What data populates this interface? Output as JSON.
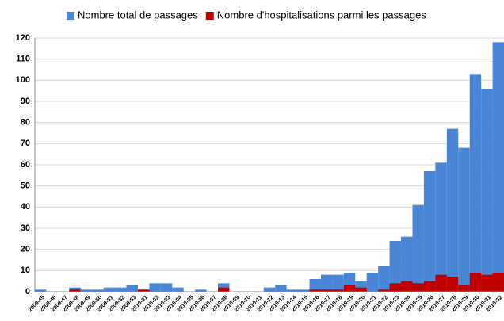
{
  "chart_data": {
    "type": "bar",
    "categories": [
      "2009-45",
      "2009-46",
      "2009-47",
      "2009-48",
      "2009-49",
      "2009-50",
      "2009-51",
      "2009-52",
      "2009-53",
      "2010-01",
      "2010-02",
      "2010-03",
      "2010-04",
      "2010-05",
      "2010-06",
      "2010-07",
      "2010-08",
      "2010-09",
      "2010-10",
      "2010-11",
      "2010-12",
      "2010-13",
      "2010-14",
      "2010-15",
      "2010-16",
      "2010-17",
      "2010-18",
      "2010-19",
      "2010-20",
      "2010-21",
      "2010-22",
      "2010-23",
      "2010-24",
      "2010-25",
      "2010-26",
      "2010-27",
      "2010-28",
      "2010-29",
      "2010-30",
      "2010-31",
      "2010-32"
    ],
    "series": [
      {
        "name": "Nombre total de passages",
        "color": "#4a86d6",
        "values": [
          1,
          0,
          0,
          2,
          1,
          1,
          2,
          2,
          3,
          1,
          4,
          4,
          2,
          0,
          1,
          0,
          4,
          0,
          0,
          0,
          2,
          3,
          1,
          1,
          6,
          8,
          8,
          9,
          5,
          9,
          12,
          24,
          26,
          41,
          57,
          61,
          77,
          68,
          103,
          96,
          118
        ]
      },
      {
        "name": "Nombre d'hospitalisations parmi les passages",
        "color": "#c00000",
        "values": [
          0,
          0,
          0,
          1,
          0,
          0,
          0,
          0,
          0,
          1,
          0,
          0,
          0,
          0,
          0,
          0,
          2,
          0,
          0,
          0,
          0,
          0,
          0,
          0,
          1,
          1,
          1,
          3,
          2,
          0,
          1,
          4,
          5,
          4,
          5,
          8,
          7,
          3,
          9,
          8,
          9
        ]
      }
    ],
    "ylim": [
      0,
      120
    ],
    "yticks": [
      0,
      10,
      20,
      30,
      40,
      50,
      60,
      70,
      80,
      90,
      100,
      110,
      120
    ],
    "grid": true,
    "legend": "top"
  }
}
